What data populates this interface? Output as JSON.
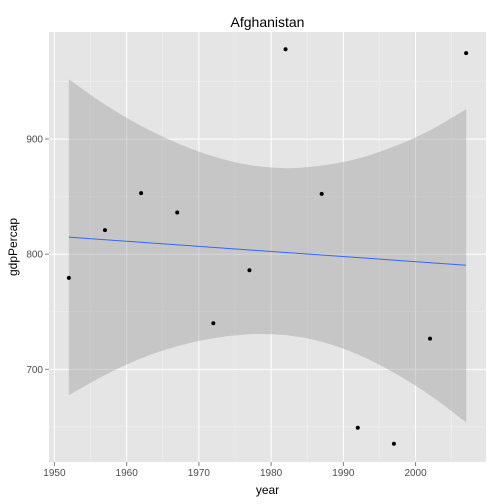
{
  "chart_data": {
    "type": "scatter",
    "title": "Afghanistan",
    "xlabel": "year",
    "ylabel": "gdpPercap",
    "xlim": [
      1949.25,
      2009.75
    ],
    "ylim": [
      619.5,
      993
    ],
    "x_ticks": [
      1950,
      1960,
      1970,
      1980,
      1990,
      2000
    ],
    "x_tick_labels": [
      "1950",
      "1960",
      "1970",
      "1980",
      "1990",
      "2000"
    ],
    "y_ticks": [
      700,
      800,
      900
    ],
    "y_tick_labels": [
      "700",
      "800",
      "900"
    ],
    "points": [
      {
        "x": 1952,
        "y": 779.4
      },
      {
        "x": 1957,
        "y": 820.9
      },
      {
        "x": 1962,
        "y": 853.1
      },
      {
        "x": 1967,
        "y": 836.2
      },
      {
        "x": 1972,
        "y": 740.0
      },
      {
        "x": 1977,
        "y": 786.1
      },
      {
        "x": 1982,
        "y": 978.0
      },
      {
        "x": 1987,
        "y": 852.4
      },
      {
        "x": 1992,
        "y": 649.3
      },
      {
        "x": 1997,
        "y": 635.3
      },
      {
        "x": 2002,
        "y": 726.7
      },
      {
        "x": 2007,
        "y": 974.6
      }
    ],
    "smooth": {
      "method": "lm",
      "fit_start": {
        "x": 1952,
        "y": 814.8
      },
      "fit_end": {
        "x": 2007,
        "y": 790.4
      },
      "ci_lower": [
        {
          "x": 1952,
          "y": 677.5
        },
        {
          "x": 1957,
          "y": 695.0
        },
        {
          "x": 1962,
          "y": 709.5
        },
        {
          "x": 1967,
          "y": 720.0
        },
        {
          "x": 1972,
          "y": 727.0
        },
        {
          "x": 1977,
          "y": 730.5
        },
        {
          "x": 1982,
          "y": 729.7
        },
        {
          "x": 1987,
          "y": 724.0
        },
        {
          "x": 1992,
          "y": 713.0
        },
        {
          "x": 1997,
          "y": 697.0
        },
        {
          "x": 2002,
          "y": 677.5
        },
        {
          "x": 2007,
          "y": 654.0
        }
      ],
      "ci_upper": [
        {
          "x": 1952,
          "y": 952.0
        },
        {
          "x": 1957,
          "y": 930.0
        },
        {
          "x": 1962,
          "y": 911.5
        },
        {
          "x": 1967,
          "y": 896.5
        },
        {
          "x": 1972,
          "y": 885.0
        },
        {
          "x": 1977,
          "y": 877.5
        },
        {
          "x": 1982,
          "y": 874.7
        },
        {
          "x": 1987,
          "y": 877.0
        },
        {
          "x": 1992,
          "y": 883.0
        },
        {
          "x": 1997,
          "y": 893.5
        },
        {
          "x": 2002,
          "y": 907.5
        },
        {
          "x": 2007,
          "y": 926.0
        }
      ]
    },
    "colors": {
      "panel_background": "#e5e5e5",
      "grid_major": "#ffffff",
      "grid_minor": "#f2f2f2",
      "point": "#000000",
      "line": "#3366ff",
      "ribbon": "#999999",
      "tick_label": "#4d4d4d",
      "tick_mark": "#7f7f7f",
      "axis_title": "#000000"
    }
  }
}
